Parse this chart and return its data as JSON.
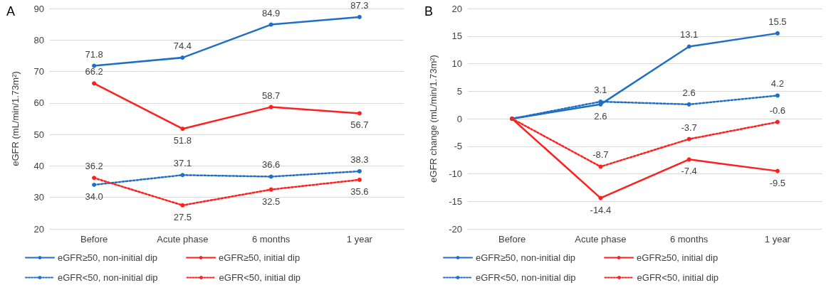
{
  "chart_data": [
    {
      "type": "line",
      "title": "A",
      "ylabel": "eGFR (mL/min/1.73m²)",
      "categories": [
        "Before",
        "Acute phase",
        "6 months",
        "1 year"
      ],
      "ylim": [
        20,
        90
      ],
      "yticks": [
        20,
        30,
        40,
        50,
        60,
        70,
        80,
        90
      ],
      "grid": "y",
      "legend": "bottom",
      "marker": "circle",
      "series": [
        {
          "name": "eGFR≥50, non-initial dip",
          "color": "#1f6fc5",
          "line_style": "solid",
          "values": [
            71.8,
            74.4,
            84.9,
            87.3
          ],
          "value_labels": [
            "71.8",
            "74.4",
            "84.9",
            "87.3"
          ]
        },
        {
          "name": "eGFR≥50, initial dip",
          "color": "#ff1f1f",
          "line_style": "solid",
          "values": [
            66.2,
            51.8,
            58.7,
            56.7
          ],
          "value_labels": [
            "66.2",
            "51.8",
            "58.7",
            "56.7"
          ]
        },
        {
          "name": "eGFR<50, non-initial dip",
          "color": "#1f6fc5",
          "line_style": "dotted",
          "values": [
            34.0,
            37.1,
            36.6,
            38.3
          ],
          "value_labels": [
            "34.0",
            "37.1",
            "36.6",
            "38.3"
          ]
        },
        {
          "name": "eGFR<50, initial dip",
          "color": "#ff1f1f",
          "line_style": "dotted",
          "values": [
            36.2,
            27.5,
            32.5,
            35.6
          ],
          "value_labels": [
            "36.2",
            "27.5",
            "32.5",
            "35.6"
          ]
        }
      ]
    },
    {
      "type": "line",
      "title": "B",
      "ylabel": "eGFR change (mL/min/1.73m²)",
      "categories": [
        "Before",
        "Acute phase",
        "6 months",
        "1 year"
      ],
      "ylim": [
        -20,
        20
      ],
      "yticks": [
        -20,
        -15,
        -10,
        -5,
        0,
        5,
        10,
        15,
        20
      ],
      "grid": "y",
      "legend": "bottom",
      "marker": "circle",
      "series": [
        {
          "name": "eGFR≥50, non-initial dip",
          "color": "#1f6fc5",
          "line_style": "solid",
          "values": [
            0,
            2.6,
            13.1,
            15.5
          ],
          "value_labels": [
            null,
            "2.6",
            "13.1",
            "15.5"
          ]
        },
        {
          "name": "eGFR≥50, initial dip",
          "color": "#ff1f1f",
          "line_style": "solid",
          "values": [
            0,
            -14.4,
            -7.4,
            -9.5
          ],
          "value_labels": [
            null,
            "-14.4",
            "-7.4",
            "-9.5"
          ]
        },
        {
          "name": "eGFR<50, non-initial dip",
          "color": "#1f6fc5",
          "line_style": "dotted",
          "values": [
            0,
            3.1,
            2.6,
            4.2
          ],
          "value_labels": [
            null,
            "3.1",
            "2.6",
            "4.2"
          ]
        },
        {
          "name": "eGFR<50, initial dip",
          "color": "#ff1f1f",
          "line_style": "dotted",
          "values": [
            0,
            -8.7,
            -3.7,
            -0.6
          ],
          "value_labels": [
            null,
            "-8.7",
            "-3.7",
            "-0.6"
          ]
        }
      ]
    }
  ]
}
